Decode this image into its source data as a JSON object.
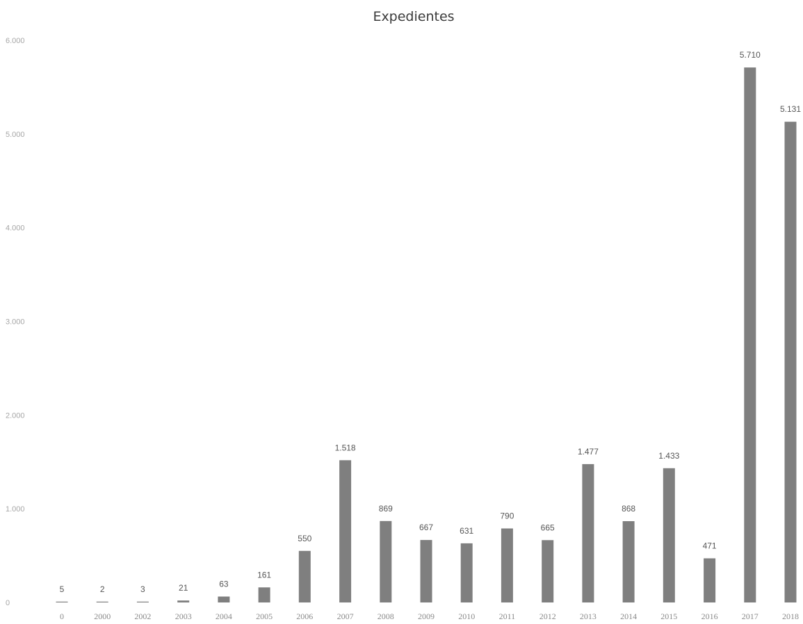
{
  "chart_data": {
    "type": "bar",
    "title": "Expedientes",
    "xlabel": "",
    "ylabel": "",
    "categories": [
      "0",
      "2000",
      "2002",
      "2003",
      "2004",
      "2005",
      "2006",
      "2007",
      "2008",
      "2009",
      "2010",
      "2011",
      "2012",
      "2013",
      "2014",
      "2015",
      "2016",
      "2017",
      "2018"
    ],
    "values": [
      5,
      2,
      3,
      21,
      63,
      161,
      550,
      1518,
      869,
      667,
      631,
      790,
      665,
      1477,
      868,
      1433,
      471,
      5710,
      5131
    ],
    "value_labels": [
      "5",
      "2",
      "3",
      "21",
      "63",
      "161",
      "550",
      "1.518",
      "869",
      "667",
      "631",
      "790",
      "665",
      "1.477",
      "868",
      "1.433",
      "471",
      "5.710",
      "5.131"
    ],
    "yticks": [
      0,
      1000,
      2000,
      3000,
      4000,
      5000,
      6000
    ],
    "ytick_labels": [
      "0",
      "1.000",
      "2.000",
      "3.000",
      "4.000",
      "5.000",
      "6.000"
    ],
    "ylim": [
      0,
      6000
    ],
    "grid": false,
    "legend": "none",
    "bar_color": "#7f7f7f"
  }
}
